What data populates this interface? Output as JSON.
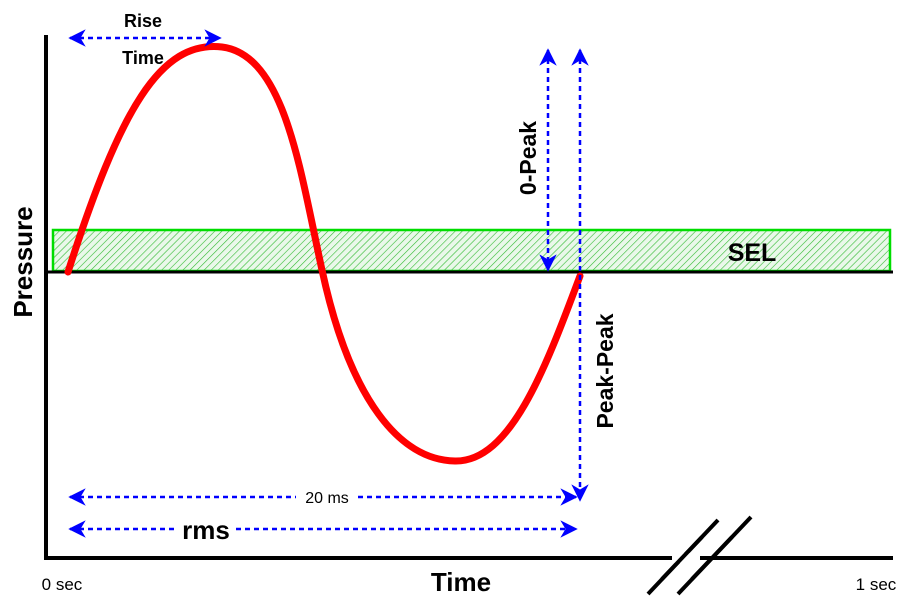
{
  "labels": {
    "rise_time_line1": "Rise",
    "rise_time_line2": "Time",
    "zero_peak": "0-Peak",
    "peak_peak": "Peak-Peak",
    "sel": "SEL",
    "duration": "20 ms",
    "rms": "rms",
    "y_axis": "Pressure",
    "x_axis": "Time",
    "x_start": "0 sec",
    "x_end": "1 sec"
  },
  "colors": {
    "waveform": "#ff0000",
    "measure_arrows": "#0000ff",
    "sel_band_border": "#00dd00",
    "sel_band_hatch": "#33bb33",
    "axes": "#000000"
  }
}
